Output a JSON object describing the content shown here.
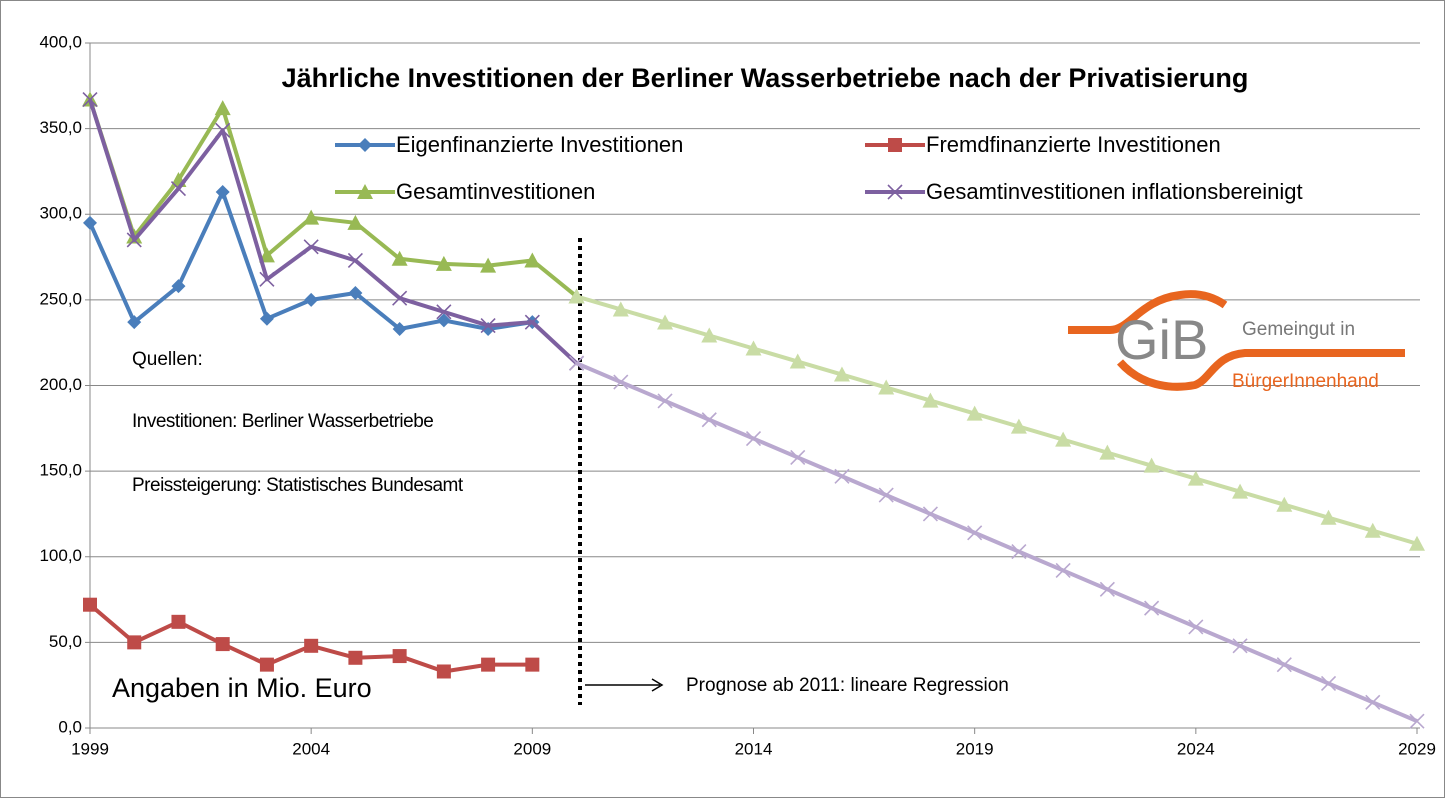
{
  "chart_data": {
    "type": "line",
    "title": "Jährliche Investitionen der Berliner Wasserbetriebe nach der Privatisierung",
    "x": [
      1999,
      2000,
      2001,
      2002,
      2003,
      2004,
      2005,
      2006,
      2007,
      2008,
      2009,
      2010,
      2011,
      2012,
      2013,
      2014,
      2015,
      2016,
      2017,
      2018,
      2019,
      2020,
      2021,
      2022,
      2023,
      2024,
      2025,
      2026,
      2027,
      2028,
      2029
    ],
    "xlim": [
      1999,
      2029
    ],
    "xticks": [
      1999,
      2004,
      2009,
      2014,
      2019,
      2024,
      2029
    ],
    "ylim": [
      0,
      400
    ],
    "yticks": [
      {
        "value": 0,
        "label": "0,0"
      },
      {
        "value": 50,
        "label": "50,0"
      },
      {
        "value": 100,
        "label": "100,0"
      },
      {
        "value": 150,
        "label": "150,0"
      },
      {
        "value": 200,
        "label": "200,0"
      },
      {
        "value": 250,
        "label": "250,0"
      },
      {
        "value": 300,
        "label": "300,0"
      },
      {
        "value": 350,
        "label": "350,0"
      },
      {
        "value": 400,
        "label": "400,0"
      }
    ],
    "grid": true,
    "series": [
      {
        "name": "Eigenfinanzierte Investitionen",
        "color": "#4a7ebb",
        "marker": "diamond",
        "values": [
          295,
          237,
          258,
          313,
          239,
          250,
          254,
          233,
          238,
          233,
          237,
          null,
          null,
          null,
          null,
          null,
          null,
          null,
          null,
          null,
          null,
          null,
          null,
          null,
          null,
          null,
          null,
          null,
          null,
          null,
          null
        ]
      },
      {
        "name": "Fremdfinanzierte Investitionen",
        "color": "#be4b48",
        "marker": "square",
        "values": [
          72,
          50,
          62,
          49,
          37,
          48,
          41,
          42,
          33,
          37,
          37,
          null,
          null,
          null,
          null,
          null,
          null,
          null,
          null,
          null,
          null,
          null,
          null,
          null,
          null,
          null,
          null,
          null,
          null,
          null,
          null
        ]
      },
      {
        "name": "Gesamtinvestitionen",
        "color": "#98b954",
        "marker": "triangle",
        "values": [
          367,
          287,
          320,
          362,
          276,
          298,
          295,
          274,
          271,
          270,
          273,
          252,
          null,
          null,
          null,
          null,
          null,
          null,
          null,
          null,
          null,
          null,
          null,
          null,
          null,
          null,
          null,
          null,
          null,
          null,
          null
        ]
      },
      {
        "name": "Gesamtinvestitionen inflationsbereinigt",
        "color": "#7d60a0",
        "marker": "x",
        "values": [
          367,
          285,
          315,
          349,
          262,
          281,
          273,
          251,
          243,
          235,
          237,
          213,
          null,
          null,
          null,
          null,
          null,
          null,
          null,
          null,
          null,
          null,
          null,
          null,
          null,
          null,
          null,
          null,
          null,
          null,
          null
        ]
      },
      {
        "color": "#c9dca5",
        "marker": "triangle",
        "values": [
          null,
          null,
          null,
          null,
          null,
          null,
          null,
          null,
          null,
          null,
          null,
          252,
          244.4,
          236.8,
          229.2,
          221.6,
          214,
          206.4,
          198.8,
          191.2,
          183.6,
          176,
          168.4,
          160.8,
          153.2,
          145.6,
          138,
          130.4,
          122.8,
          115.2,
          107.6
        ]
      },
      {
        "color": "#b9a8cf",
        "marker": "x",
        "values": [
          null,
          null,
          null,
          null,
          null,
          null,
          null,
          null,
          null,
          null,
          null,
          213,
          202,
          191,
          180,
          169,
          158,
          147,
          136,
          125,
          114,
          103,
          92,
          81,
          70,
          59,
          48,
          37,
          26,
          15,
          4
        ]
      }
    ],
    "annotations": [
      "Quellen:",
      "Investitionen: Berliner Wasserbetriebe",
      "Preissteigerung: Statistisches Bundesamt",
      "Angaben in Mio. Euro",
      "Prognose ab 2011:  lineare Regression"
    ],
    "logo": {
      "mark": "GiB",
      "line1": "Gemeingut in",
      "line2": "BürgerInnenhand"
    }
  }
}
